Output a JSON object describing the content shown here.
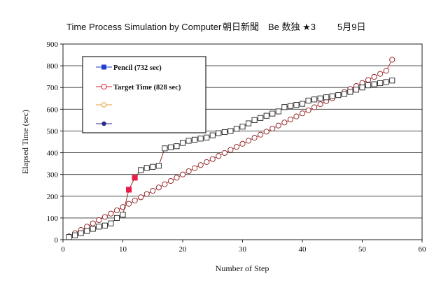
{
  "chart_data": {
    "type": "line",
    "title": "Time Process Simulation by Computer",
    "subtitle": "朝日新聞　Be 数独 ★3",
    "date_label": "5月9日",
    "xlabel": "Number of Step",
    "ylabel": "Elapsed Time (sec)",
    "xlim": [
      0,
      60
    ],
    "ylim": [
      0,
      900
    ],
    "xticks": [
      "0",
      "10",
      "20",
      "30",
      "40",
      "50",
      "60"
    ],
    "yticks": [
      "0",
      "100",
      "200",
      "300",
      "400",
      "500",
      "600",
      "700",
      "800",
      "900"
    ],
    "grid": true,
    "legend_position": "top-left",
    "legend": [
      {
        "label": "Pencil (732 sec)",
        "marker": "filled-square",
        "color": "#1f3fcf"
      },
      {
        "label": "Target Time (828 sec)",
        "marker": "open-circle",
        "color": "#d0203a"
      },
      {
        "label": "",
        "marker": "open-circle",
        "color": "#e0a040"
      },
      {
        "label": "",
        "marker": "filled-circle",
        "color": "#2a2a90"
      }
    ],
    "series": [
      {
        "name": "Target Time (828 sec)",
        "marker": "circle",
        "x": [
          1,
          2,
          3,
          4,
          5,
          6,
          7,
          8,
          9,
          10,
          11,
          12,
          13,
          14,
          15,
          16,
          17,
          18,
          19,
          20,
          21,
          22,
          23,
          24,
          25,
          26,
          27,
          28,
          29,
          30,
          31,
          32,
          33,
          34,
          35,
          36,
          37,
          38,
          39,
          40,
          41,
          42,
          43,
          44,
          45,
          46,
          47,
          48,
          49,
          50,
          51,
          52,
          53,
          54,
          55
        ],
        "values": [
          15,
          30,
          45,
          60,
          75,
          90,
          105,
          120,
          135,
          150,
          165,
          180,
          195,
          210,
          225,
          240,
          255,
          270,
          285,
          300,
          315,
          329,
          343,
          357,
          371,
          385,
          399,
          413,
          427,
          441,
          455,
          469,
          483,
          497,
          511,
          525,
          539,
          553,
          567,
          581,
          595,
          609,
          623,
          637,
          651,
          665,
          679,
          693,
          707,
          721,
          735,
          749,
          763,
          777,
          828
        ]
      },
      {
        "name": "Pencil (732 sec)",
        "marker": "square",
        "x": [
          1,
          2,
          3,
          4,
          5,
          6,
          7,
          8,
          9,
          10,
          11,
          12,
          13,
          14,
          15,
          16,
          17,
          18,
          19,
          20,
          21,
          22,
          23,
          24,
          25,
          26,
          27,
          28,
          29,
          30,
          31,
          32,
          33,
          34,
          35,
          36,
          37,
          38,
          39,
          40,
          41,
          42,
          43,
          44,
          45,
          46,
          47,
          48,
          49,
          50,
          51,
          52,
          53,
          54,
          55
        ],
        "values": [
          12,
          20,
          30,
          40,
          50,
          60,
          65,
          75,
          100,
          115,
          230,
          285,
          320,
          330,
          335,
          340,
          420,
          425,
          430,
          445,
          455,
          460,
          465,
          470,
          480,
          490,
          495,
          500,
          510,
          520,
          535,
          550,
          560,
          570,
          580,
          590,
          610,
          615,
          620,
          625,
          640,
          645,
          650,
          655,
          660,
          665,
          670,
          680,
          690,
          700,
          710,
          715,
          720,
          725,
          732
        ],
        "highlight_x": [
          11,
          12
        ]
      }
    ]
  }
}
